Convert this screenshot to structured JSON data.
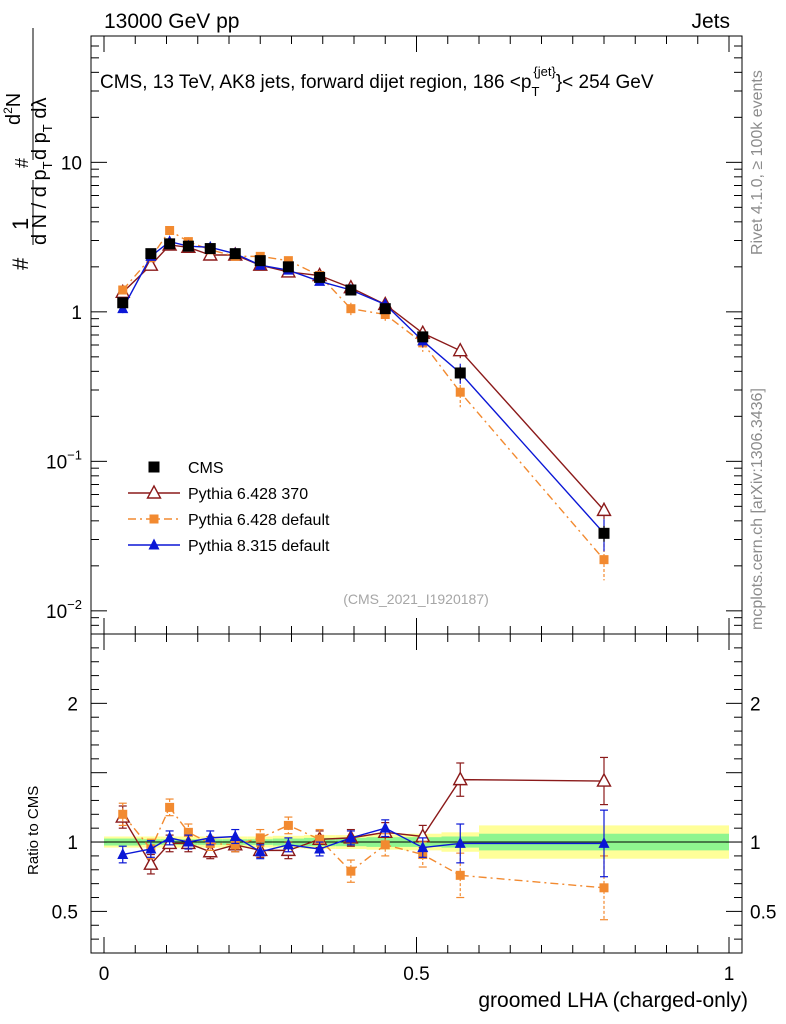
{
  "header": {
    "left": "13000 GeV pp",
    "right": "Jets"
  },
  "side_labels": {
    "rivet": "Rivet 4.1.0, ≥ 100k events",
    "mcplots": "mcplots.cern.ch [arXiv:1306.3436]"
  },
  "chart_data": {
    "type": "line",
    "title": "CMS, 13 TeV, AK8 jets, forward dijet region, 186 <p",
    "title_sub": "T",
    "title_sup": "{jet}",
    "title_end": "}< 254 GeV",
    "analysis_tag": "(CMS_2021_I1920187)",
    "xlabel": "groomed LHA (charged-only)",
    "ylabel_main": "1/N dN/dp_T dλ",
    "ylabel_ratio": "Ratio to CMS",
    "xlim": [
      0,
      1
    ],
    "main_ylim": [
      0.007,
      70
    ],
    "ratio_ylim": [
      0.2,
      2.5
    ],
    "x_ticks": [
      {
        "value": 0,
        "label": "0"
      },
      {
        "value": 0.5,
        "label": "0.5"
      },
      {
        "value": 1,
        "label": "1"
      }
    ],
    "main_y_ticks": [
      {
        "value": 10,
        "base": "10",
        "exp": ""
      },
      {
        "value": 1,
        "base": "1",
        "exp": ""
      },
      {
        "value": 0.1,
        "base": "10",
        "exp": "−1"
      },
      {
        "value": 0.01,
        "base": "10",
        "exp": "−2"
      }
    ],
    "ratio_y_ticks": [
      {
        "value": 2,
        "label": "2"
      },
      {
        "value": 1,
        "label": "1"
      },
      {
        "value": 0.5,
        "label": "0.5"
      }
    ],
    "x": [
      0.03,
      0.075,
      0.105,
      0.135,
      0.17,
      0.21,
      0.25,
      0.295,
      0.345,
      0.395,
      0.45,
      0.51,
      0.57,
      0.8
    ],
    "bin_edges": [
      0.0,
      0.06,
      0.09,
      0.12,
      0.15,
      0.19,
      0.23,
      0.27,
      0.32,
      0.37,
      0.42,
      0.48,
      0.54,
      0.6,
      1.0
    ],
    "stat_band": [
      0.025,
      0.02,
      0.02,
      0.02,
      0.02,
      0.02,
      0.02,
      0.025,
      0.03,
      0.03,
      0.035,
      0.035,
      0.04,
      0.06
    ],
    "total_band": [
      0.04,
      0.04,
      0.04,
      0.04,
      0.04,
      0.04,
      0.04,
      0.045,
      0.05,
      0.05,
      0.055,
      0.06,
      0.07,
      0.12
    ],
    "legend": {
      "position": "lower-left"
    },
    "series": [
      {
        "name": "CMS",
        "color": "#000000",
        "marker": "square",
        "line": "none",
        "values": [
          1.15,
          2.45,
          2.85,
          2.75,
          2.65,
          2.45,
          2.2,
          2.0,
          1.7,
          1.4,
          1.05,
          0.68,
          0.39,
          0.033
        ],
        "errors": [
          0.07,
          0.09,
          0.09,
          0.08,
          0.08,
          0.08,
          0.07,
          0.07,
          0.06,
          0.06,
          0.05,
          0.05,
          0.04,
          0.004
        ],
        "ratio": [
          1,
          1,
          1,
          1,
          1,
          1,
          1,
          1,
          1,
          1,
          1,
          1,
          1,
          1
        ],
        "ratio_err": [
          0,
          0,
          0,
          0,
          0,
          0,
          0,
          0,
          0,
          0,
          0,
          0,
          0,
          0
        ]
      },
      {
        "name": "Pythia 6.428 370",
        "color": "#8b1a1a",
        "marker": "triangle-open",
        "line": "solid",
        "values": [
          1.35,
          2.05,
          2.8,
          2.7,
          2.4,
          2.4,
          2.05,
          1.85,
          1.75,
          1.45,
          1.12,
          0.72,
          0.55,
          0.047
        ],
        "errors": [
          0.1,
          0.14,
          0.18,
          0.16,
          0.13,
          0.13,
          0.12,
          0.11,
          0.1,
          0.09,
          0.08,
          0.06,
          0.06,
          0.006
        ],
        "ratio": [
          1.18,
          0.84,
          0.99,
          0.99,
          0.93,
          0.98,
          0.94,
          0.94,
          1.02,
          1.03,
          1.07,
          1.04,
          1.45,
          1.44
        ],
        "ratio_err": [
          0.08,
          0.07,
          0.06,
          0.06,
          0.05,
          0.05,
          0.05,
          0.06,
          0.06,
          0.06,
          0.07,
          0.08,
          0.12,
          0.17
        ]
      },
      {
        "name": "Pythia 6.428 default",
        "color": "#f28a30",
        "marker": "square-small",
        "line": "dashdot",
        "values": [
          1.4,
          2.3,
          3.5,
          2.95,
          2.6,
          2.35,
          2.35,
          2.2,
          1.75,
          1.05,
          0.96,
          0.62,
          0.29,
          0.022
        ],
        "errors": [
          0.1,
          0.15,
          0.22,
          0.2,
          0.16,
          0.15,
          0.15,
          0.14,
          0.12,
          0.1,
          0.09,
          0.08,
          0.06,
          0.006
        ],
        "ratio": [
          1.2,
          0.95,
          1.25,
          1.07,
          0.99,
          0.98,
          1.03,
          1.12,
          1.02,
          0.79,
          0.98,
          0.91,
          0.76,
          0.67
        ],
        "ratio_err": [
          0.08,
          0.07,
          0.06,
          0.06,
          0.05,
          0.05,
          0.06,
          0.06,
          0.07,
          0.08,
          0.08,
          0.09,
          0.16,
          0.23
        ]
      },
      {
        "name": "Pythia 8.315 default",
        "color": "#0b17d6",
        "marker": "triangle",
        "line": "solid",
        "values": [
          1.05,
          2.35,
          2.95,
          2.75,
          2.7,
          2.45,
          2.05,
          1.9,
          1.6,
          1.4,
          1.12,
          0.64,
          0.39,
          0.033
        ],
        "errors": [
          0.07,
          0.12,
          0.15,
          0.14,
          0.13,
          0.12,
          0.11,
          0.1,
          0.09,
          0.08,
          0.07,
          0.06,
          0.06,
          0.008
        ],
        "ratio": [
          0.91,
          0.95,
          1.03,
          1.0,
          1.03,
          1.04,
          0.93,
          0.98,
          0.95,
          1.03,
          1.1,
          0.96,
          0.99,
          0.99
        ],
        "ratio_err": [
          0.06,
          0.06,
          0.05,
          0.05,
          0.05,
          0.05,
          0.05,
          0.05,
          0.05,
          0.05,
          0.06,
          0.07,
          0.14,
          0.24
        ]
      }
    ]
  }
}
